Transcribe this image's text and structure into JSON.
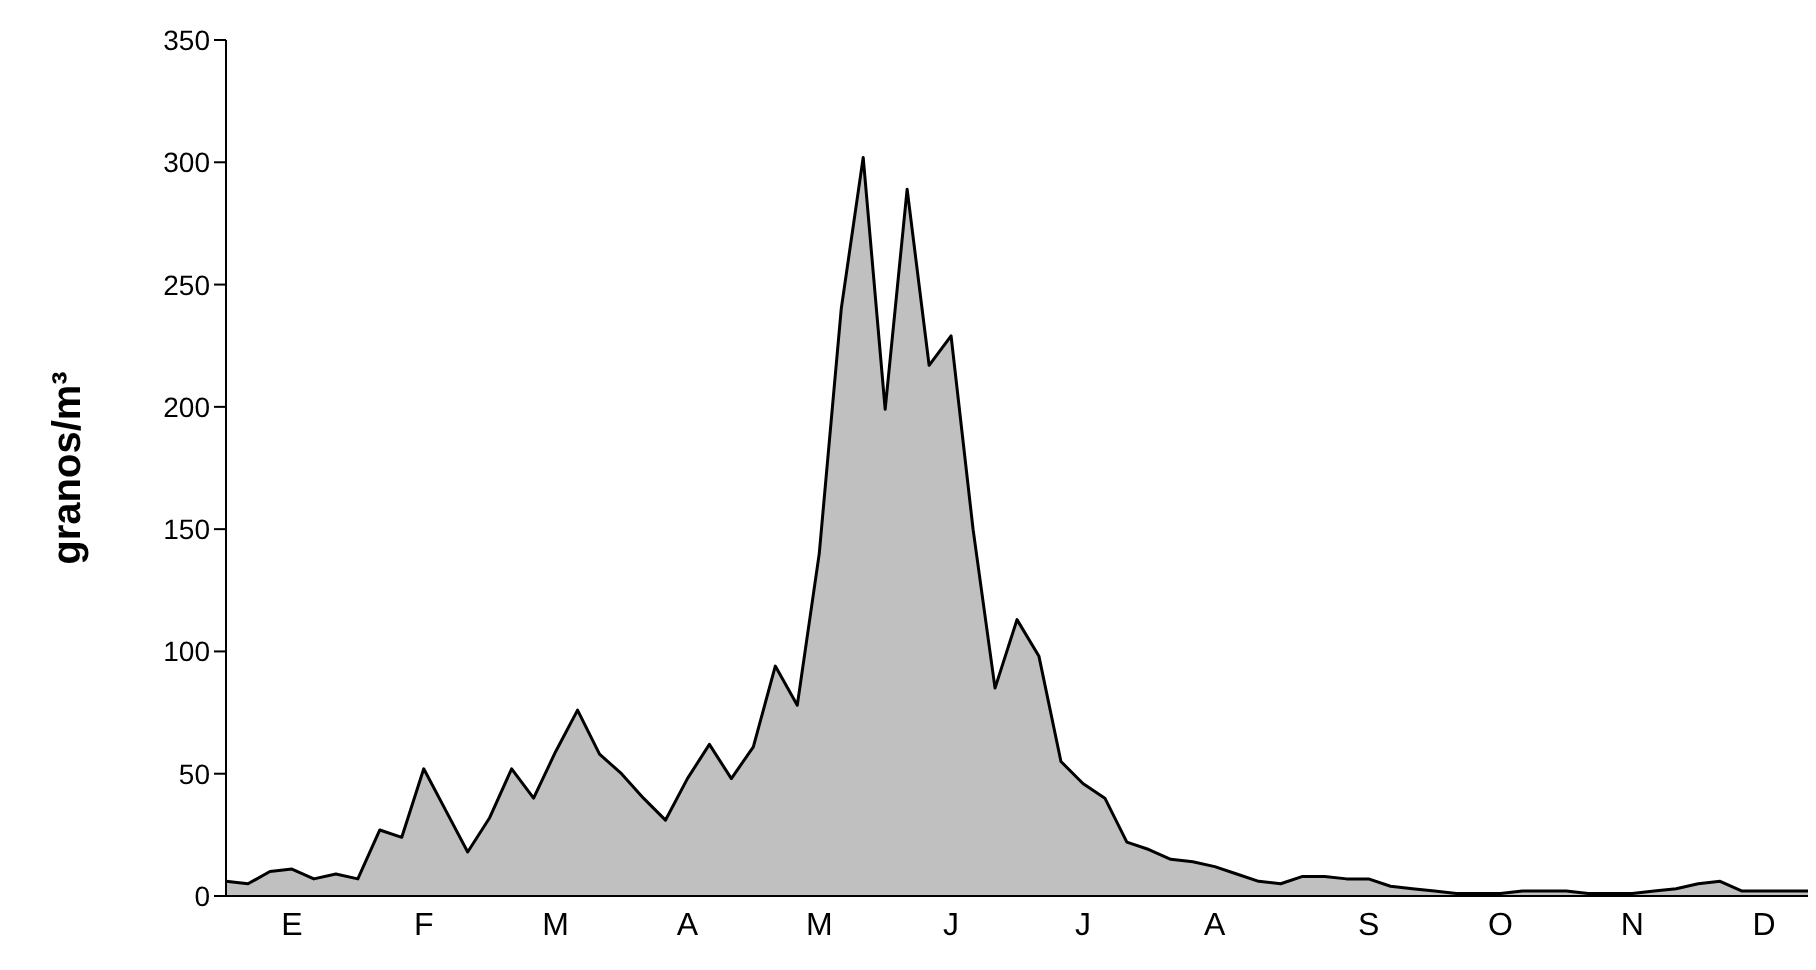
{
  "chart_data": {
    "type": "area",
    "ylabel": "granos/m³",
    "color": "#c0c0c0",
    "categories": [
      null,
      null,
      null,
      "E",
      null,
      null,
      null,
      null,
      null,
      "F",
      null,
      null,
      null,
      null,
      null,
      "M",
      null,
      null,
      null,
      null,
      null,
      "A",
      null,
      null,
      null,
      null,
      null,
      "M",
      null,
      null,
      null,
      null,
      null,
      "J",
      null,
      null,
      null,
      null,
      null,
      "J",
      null,
      null,
      null,
      null,
      null,
      "A",
      null,
      null,
      null,
      null,
      null,
      null,
      "S",
      null,
      null,
      null,
      null,
      null,
      "O",
      null,
      null,
      null,
      null,
      null,
      "N",
      null,
      null,
      null,
      null,
      null,
      "D",
      null,
      null
    ],
    "values": [
      6,
      5,
      10,
      11,
      7,
      9,
      7,
      27,
      24,
      52,
      35,
      18,
      32,
      52,
      40,
      59,
      76,
      58,
      50,
      40,
      31,
      48,
      62,
      48,
      61,
      94,
      78,
      140,
      240,
      302,
      199,
      289,
      217,
      229,
      150,
      85,
      113,
      98,
      55,
      46,
      40,
      22,
      19,
      15,
      14,
      12,
      9,
      6,
      5,
      8,
      8,
      7,
      7,
      4,
      3,
      2,
      1,
      1,
      1,
      2,
      2,
      2,
      1,
      1,
      1,
      2,
      3,
      5,
      6,
      2,
      2,
      2,
      2
    ],
    "ylim": [
      0,
      350
    ],
    "yticks": [
      0,
      50,
      100,
      150,
      200,
      250,
      300,
      350
    ],
    "grid": false,
    "marker": "none",
    "line_style": "solid",
    "legend": false
  }
}
